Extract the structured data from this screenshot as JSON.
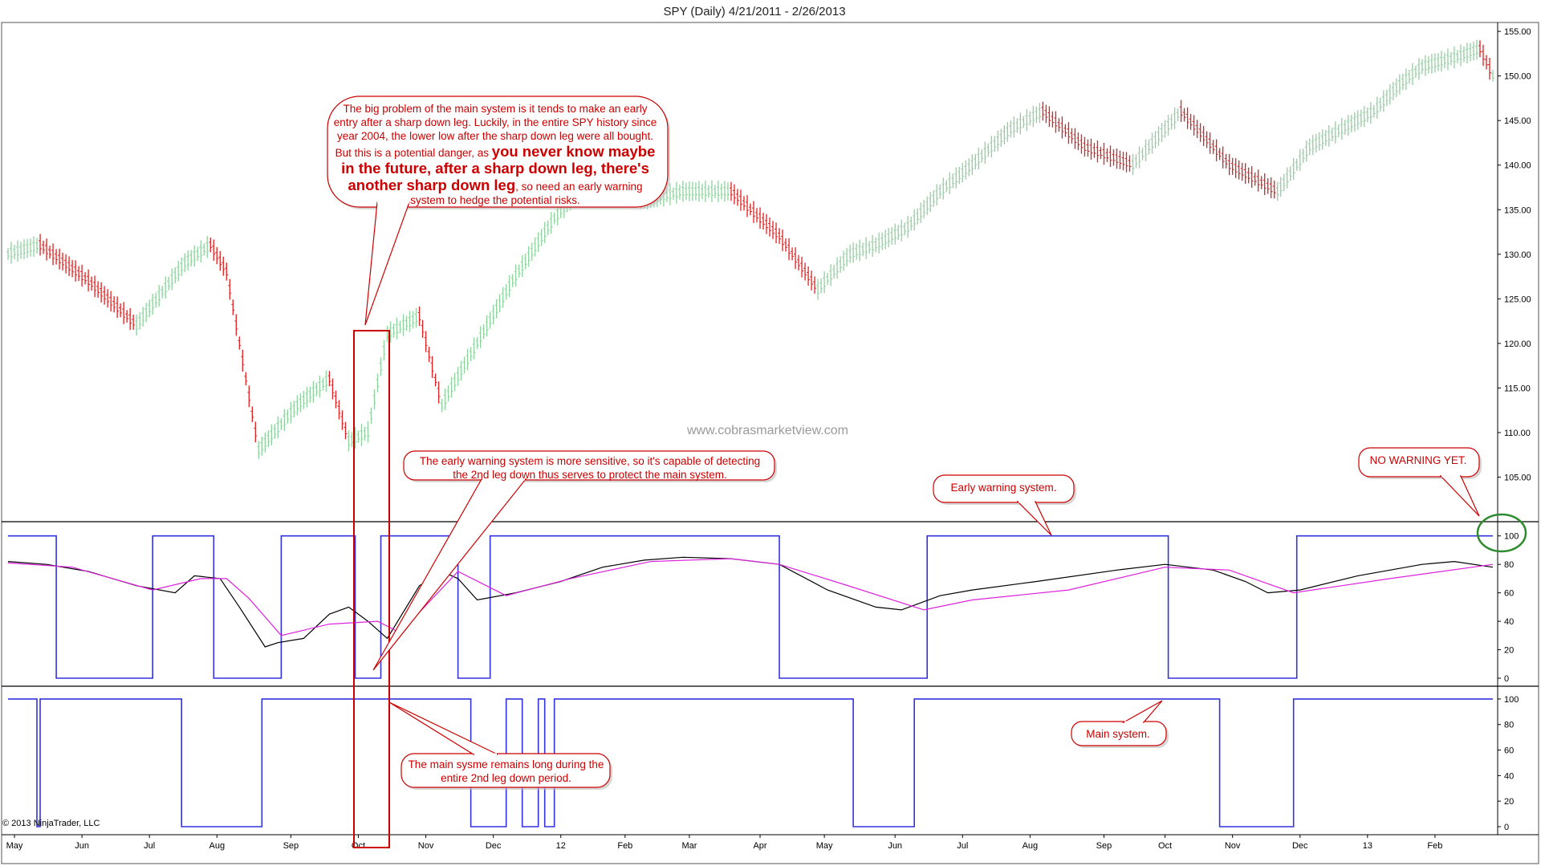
{
  "chart_data": [
    {
      "type": "candlestick",
      "title": "SPY (Daily)  4/21/2011 - 2/26/2013",
      "ylim": [
        100,
        156
      ],
      "y_ticks": [
        "105.00",
        "110.00",
        "115.00",
        "120.00",
        "125.00",
        "130.00",
        "135.00",
        "140.00",
        "145.00",
        "150.00",
        "155.00"
      ],
      "up_color": "#8fd19e",
      "down_color": "#e02020",
      "anchors": {
        "x": [
          0,
          10,
          25,
          40,
          55,
          63,
          68,
          78,
          90,
          100,
          106,
          112,
          118,
          128,
          135,
          138,
          146,
          157,
          170,
          185,
          198,
          210,
          225,
          240,
          252,
          262,
          270,
          280,
          290,
          300,
          312,
          322,
          335,
          350,
          365,
          380,
          395,
          405,
          415,
          425,
          433,
          440,
          450,
          458,
          462
        ],
        "y": [
          130,
          131,
          127,
          122,
          129,
          131,
          128,
          108,
          113,
          116,
          109,
          110,
          121,
          123,
          113,
          115,
          120,
          127,
          134,
          140,
          136,
          137,
          137,
          132,
          126,
          130,
          131,
          133,
          137,
          140,
          144,
          146,
          142,
          140,
          146,
          140,
          137,
          142,
          144,
          146,
          149,
          151,
          152,
          153,
          150
        ]
      }
    },
    {
      "type": "line",
      "panel": "early-warning",
      "ylim": [
        0,
        110
      ],
      "y_ticks": [
        "0",
        "20",
        "40",
        "60",
        "80",
        "100"
      ],
      "series": [
        {
          "color": "#3333dd",
          "x": [
            0,
            15,
            15,
            45,
            45,
            64,
            64,
            85,
            85,
            108,
            108,
            116,
            116,
            140,
            140,
            150,
            150,
            240,
            240,
            286,
            286,
            361,
            361,
            401,
            401,
            462
          ],
          "y": [
            100,
            100,
            0,
            0,
            100,
            100,
            0,
            0,
            100,
            100,
            0,
            0,
            100,
            100,
            0,
            0,
            100,
            100,
            0,
            0,
            100,
            100,
            0,
            0,
            100,
            100
          ]
        },
        {
          "color": "#000000",
          "x": [
            0,
            12,
            25,
            40,
            52,
            58,
            66,
            72,
            80,
            84,
            92,
            100,
            106,
            112,
            118,
            128,
            135,
            140,
            146,
            158,
            172,
            185,
            198,
            210,
            225,
            240,
            255,
            270,
            278,
            290,
            300,
            320,
            345,
            360,
            375,
            385,
            392,
            402,
            420,
            440,
            450,
            462
          ],
          "y": [
            82,
            80,
            75,
            65,
            60,
            72,
            70,
            50,
            22,
            25,
            28,
            45,
            50,
            40,
            28,
            65,
            75,
            70,
            55,
            60,
            68,
            78,
            83,
            85,
            84,
            80,
            62,
            50,
            48,
            58,
            62,
            68,
            76,
            80,
            76,
            68,
            60,
            62,
            72,
            80,
            82,
            78
          ]
        },
        {
          "color": "#dd22dd",
          "x": [
            0,
            20,
            45,
            60,
            68,
            75,
            85,
            100,
            115,
            122,
            140,
            155,
            175,
            200,
            225,
            240,
            260,
            285,
            300,
            330,
            360,
            380,
            400,
            430,
            462
          ],
          "y": [
            81,
            78,
            62,
            70,
            70,
            56,
            30,
            38,
            40,
            32,
            75,
            58,
            70,
            82,
            84,
            80,
            66,
            48,
            55,
            62,
            78,
            76,
            60,
            70,
            80
          ]
        }
      ],
      "annotations": [
        "Early warning system."
      ]
    },
    {
      "type": "line",
      "panel": "main-system",
      "ylim": [
        0,
        110
      ],
      "y_ticks": [
        "0",
        "20",
        "40",
        "60",
        "80",
        "100"
      ],
      "series": [
        {
          "color": "#3333dd",
          "x": [
            0,
            9,
            9,
            10,
            10,
            12,
            12,
            54,
            54,
            79,
            79,
            144,
            144,
            155,
            155,
            160,
            160,
            165,
            165,
            167,
            167,
            170,
            170,
            263,
            263,
            282,
            282,
            377,
            377,
            387,
            387,
            400,
            400,
            462
          ],
          "y": [
            100,
            100,
            0,
            0,
            100,
            100,
            100,
            100,
            0,
            0,
            100,
            100,
            0,
            0,
            100,
            100,
            0,
            0,
            100,
            100,
            0,
            0,
            100,
            100,
            0,
            0,
            100,
            100,
            0,
            0,
            0,
            0,
            100,
            100
          ]
        }
      ],
      "annotations": [
        "Main system."
      ]
    }
  ],
  "x_axis": {
    "ticks": [
      {
        "label": "May",
        "x": 2
      },
      {
        "label": "Jun",
        "x": 23
      },
      {
        "label": "Jul",
        "x": 44
      },
      {
        "label": "Aug",
        "x": 65
      },
      {
        "label": "Sep",
        "x": 88
      },
      {
        "label": "Oct",
        "x": 109
      },
      {
        "label": "Nov",
        "x": 130
      },
      {
        "label": "Dec",
        "x": 151
      },
      {
        "label": "12",
        "x": 172
      },
      {
        "label": "Feb",
        "x": 192
      },
      {
        "label": "Mar",
        "x": 212
      },
      {
        "label": "Apr",
        "x": 234
      },
      {
        "label": "May",
        "x": 254
      },
      {
        "label": "Jun",
        "x": 276
      },
      {
        "label": "Jul",
        "x": 297
      },
      {
        "label": "Aug",
        "x": 318
      },
      {
        "label": "Sep",
        "x": 341
      },
      {
        "label": "Oct",
        "x": 360
      },
      {
        "label": "Nov",
        "x": 381
      },
      {
        "label": "Dec",
        "x": 402
      },
      {
        "label": "13",
        "x": 423
      },
      {
        "label": "Feb",
        "x": 444
      }
    ]
  },
  "callouts": {
    "problem_pre": "The big problem of the main system is it tends to make an early entry after a sharp down leg. Luckily, in the entire SPY history since year 2004, the lower low after the sharp down leg were all bought. But this is a potential danger, as",
    "problem_bold": "you never know maybe in the future, after a sharp down leg, there's another sharp down leg",
    "problem_post": ", so need an early warning system to hedge the potential risks.",
    "early_sensitive": "The early warning system is more sensitive, so it's capable of detecting the 2nd leg down thus serves to protect the main system.",
    "early_label": "Early warning system.",
    "no_warning": "NO WARNING YET.",
    "main_remains": "The main sysme remains long during the entire 2nd leg down period.",
    "main_label": "Main system."
  },
  "watermark": "www.cobrasmarketview.com",
  "copyright": "© 2013 NinjaTrader, LLC"
}
